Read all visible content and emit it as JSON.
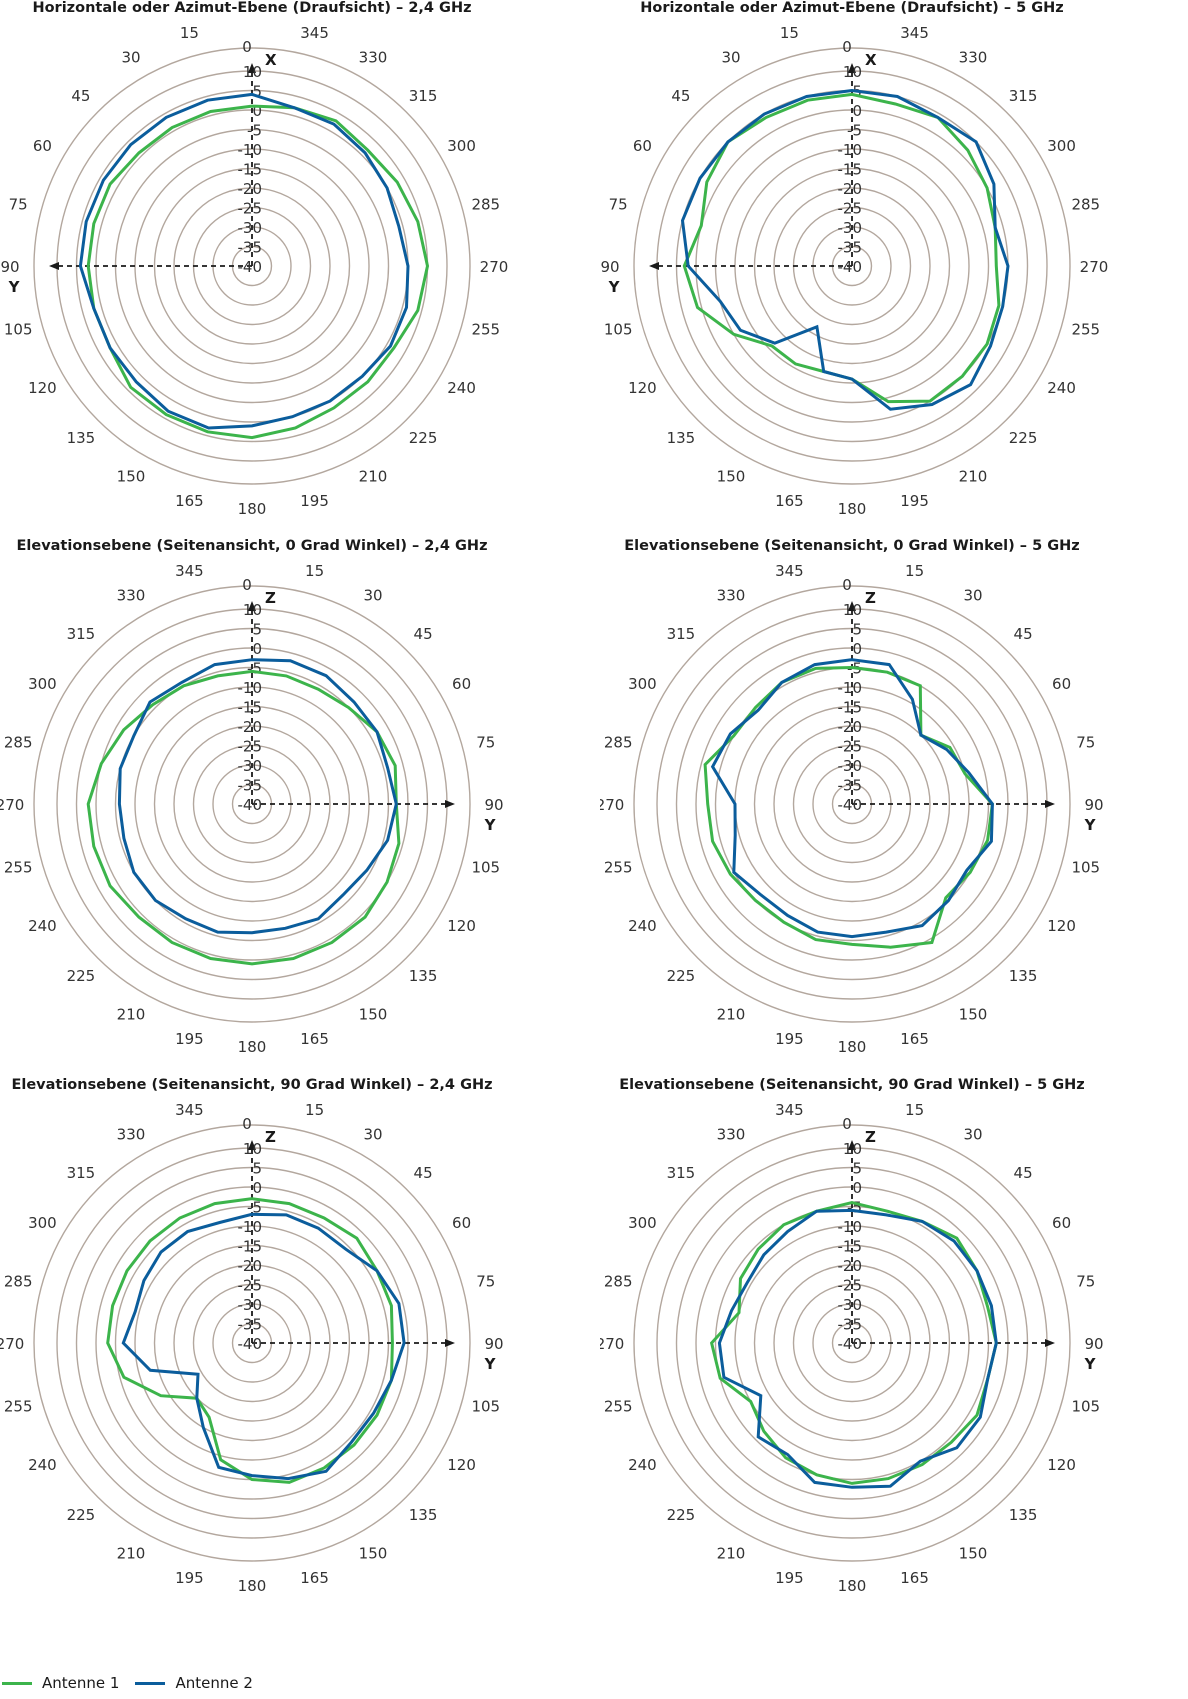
{
  "colors": {
    "antenne1": "#3cb44b",
    "antenne2": "#0b5d9c",
    "grid": "#b3a79e",
    "axis": "#1a1a1a"
  },
  "legend": [
    {
      "label": "Antenne 1",
      "color": "#3cb44b"
    },
    {
      "label": "Antenne 2",
      "color": "#0b5d9c"
    }
  ],
  "chart_data": [
    {
      "type": "polar",
      "title": "Horizontale oder Azimut-Ebene (Draufsicht) – 2,4 GHz",
      "angle_direction": "counterclockwise",
      "angle_labels": [
        "0",
        "15",
        "30",
        "45",
        "60",
        "75",
        "90",
        "105",
        "120",
        "135",
        "150",
        "165",
        "180",
        "195",
        "210",
        "225",
        "240",
        "255",
        "270",
        "285",
        "300",
        "315",
        "330",
        "345"
      ],
      "radial_ticks": [
        "10",
        "5",
        "0",
        "-5",
        "-10",
        "-15",
        "-20",
        "-25",
        "-30",
        "-35",
        "-40"
      ],
      "rlim": [
        -40,
        10
      ],
      "axis_labels": {
        "up": "X",
        "side": "Y"
      },
      "side_axis_angle": 90,
      "series": [
        {
          "name": "Antenne 1",
          "angles": [
            0,
            15,
            30,
            45,
            60,
            75,
            90,
            105,
            120,
            135,
            150,
            165,
            180,
            195,
            210,
            225,
            240,
            255,
            270,
            285,
            300,
            315,
            330,
            345
          ],
          "values": [
            1,
            1,
            1,
            1,
            2,
            2,
            2,
            2,
            2,
            4,
            4,
            4,
            4,
            3,
            2,
            2,
            2,
            4,
            5,
            4,
            3,
            2,
            3,
            2
          ]
        },
        {
          "name": "Antenne 2",
          "angles": [
            0,
            15,
            30,
            45,
            60,
            75,
            90,
            105,
            120,
            135,
            150,
            165,
            180,
            195,
            210,
            225,
            240,
            255,
            270,
            285,
            300,
            315,
            330,
            345
          ],
          "values": [
            4,
            4,
            4,
            4,
            4,
            4,
            4,
            2,
            2,
            2,
            3,
            3,
            1,
            0,
            0,
            0,
            1,
            1,
            0,
            -1,
            0,
            1,
            2,
            2
          ]
        }
      ]
    },
    {
      "type": "polar",
      "title": "Horizontale oder Azimut-Ebene (Draufsicht) – 5 GHz",
      "angle_direction": "counterclockwise",
      "angle_labels": [
        "0",
        "15",
        "30",
        "45",
        "60",
        "75",
        "90",
        "105",
        "120",
        "135",
        "150",
        "165",
        "180",
        "195",
        "210",
        "225",
        "240",
        "255",
        "270",
        "285",
        "300",
        "315",
        "330",
        "345"
      ],
      "radial_ticks": [
        "10",
        "5",
        "0",
        "-5",
        "-10",
        "-15",
        "-20",
        "-25",
        "-30",
        "-35",
        "-40"
      ],
      "rlim": [
        -40,
        10
      ],
      "axis_labels": {
        "up": "X",
        "side": "Y"
      },
      "side_axis_angle": 90,
      "series": [
        {
          "name": "Antenne 1",
          "angles": [
            0,
            15,
            30,
            45,
            60,
            75,
            90,
            105,
            120,
            135,
            150,
            165,
            180,
            195,
            210,
            225,
            240,
            255,
            270,
            285,
            300,
            315,
            330,
            345
          ],
          "values": [
            4,
            4,
            4,
            5,
            3,
            0,
            3,
            1,
            -5,
            -11,
            -11,
            -12,
            -11,
            -4,
            0,
            0,
            0,
            -1,
            -3,
            -2,
            0,
            2,
            4,
            3
          ]
        },
        {
          "name": "Antenne 2",
          "angles": [
            0,
            15,
            30,
            45,
            60,
            75,
            90,
            105,
            120,
            135,
            150,
            165,
            180,
            195,
            210,
            225,
            240,
            255,
            270,
            285,
            300,
            315,
            330,
            345
          ],
          "values": [
            5,
            5,
            5,
            5,
            5,
            5,
            2,
            -5,
            -7,
            -12,
            -22,
            -12,
            -11,
            -2,
            1,
            3,
            1,
            0,
            0,
            -2,
            2,
            5,
            4,
            5
          ]
        }
      ]
    },
    {
      "type": "polar",
      "title": "Elevationsebene (Seitenansicht, 0 Grad Winkel) – 2,4 GHz",
      "angle_direction": "clockwise",
      "angle_labels": [
        "0",
        "15",
        "30",
        "45",
        "60",
        "75",
        "90",
        "105",
        "120",
        "135",
        "150",
        "165",
        "180",
        "195",
        "210",
        "225",
        "240",
        "255",
        "270",
        "285",
        "300",
        "315",
        "330",
        "345"
      ],
      "radial_ticks": [
        "10",
        "5",
        "0",
        "-5",
        "-10",
        "-15",
        "-20",
        "-25",
        "-30",
        "-35",
        "-40"
      ],
      "rlim": [
        -40,
        10
      ],
      "axis_labels": {
        "up": "Z",
        "side": "Y"
      },
      "side_axis_angle": 90,
      "series": [
        {
          "name": "Antenne 1",
          "angles": [
            0,
            15,
            30,
            45,
            60,
            75,
            90,
            105,
            120,
            135,
            150,
            165,
            180,
            195,
            210,
            225,
            240,
            255,
            270,
            285,
            300,
            315,
            330,
            345
          ],
          "values": [
            -6,
            -6,
            -6,
            -5,
            -3,
            -2,
            -3,
            -1,
            0,
            1,
            1,
            1,
            1,
            1,
            1,
            1,
            2,
            2,
            2,
            0,
            -2,
            -4,
            -5,
            -6
          ]
        },
        {
          "name": "Antenne 2",
          "angles": [
            0,
            15,
            30,
            45,
            60,
            75,
            90,
            105,
            120,
            135,
            150,
            165,
            180,
            195,
            210,
            225,
            240,
            255,
            270,
            285,
            300,
            315,
            330,
            345
          ],
          "values": [
            -3,
            -2,
            -2,
            -3,
            -3,
            -4,
            -3,
            -4,
            -6,
            -7,
            -6,
            -7,
            -7,
            -6,
            -6,
            -5,
            -5,
            -6,
            -6,
            -5,
            -5,
            -3,
            -4,
            -3
          ]
        }
      ]
    },
    {
      "type": "polar",
      "title": "Elevationsebene (Seitenansicht, 0 Grad Winkel) – 5 GHz",
      "angle_direction": "clockwise",
      "angle_labels": [
        "0",
        "15",
        "30",
        "45",
        "60",
        "75",
        "90",
        "105",
        "120",
        "135",
        "150",
        "165",
        "180",
        "195",
        "210",
        "225",
        "240",
        "255",
        "270",
        "285",
        "300",
        "315",
        "330",
        "345"
      ],
      "radial_ticks": [
        "10",
        "5",
        "0",
        "-5",
        "-10",
        "-15",
        "-20",
        "-25",
        "-30",
        "-35",
        "-40"
      ],
      "rlim": [
        -40,
        10
      ],
      "axis_labels": {
        "up": "Z",
        "side": "Y"
      },
      "side_axis_angle": 90,
      "series": [
        {
          "name": "Antenne 1",
          "angles": [
            0,
            15,
            30,
            45,
            60,
            75,
            90,
            105,
            120,
            135,
            150,
            165,
            180,
            195,
            210,
            225,
            240,
            255,
            270,
            285,
            300,
            315,
            330,
            345
          ],
          "values": [
            -5,
            -5,
            -5,
            -15,
            -11,
            -10,
            -4,
            -4,
            -5,
            -6,
            1,
            -2,
            -4,
            -4,
            -5,
            -5,
            -4,
            -3,
            -3,
            -1,
            -5,
            -5,
            -4,
            -4
          ]
        },
        {
          "name": "Antenne 2",
          "angles": [
            0,
            15,
            30,
            45,
            60,
            75,
            90,
            105,
            120,
            135,
            150,
            165,
            180,
            195,
            210,
            225,
            240,
            255,
            270,
            285,
            300,
            315,
            330,
            345
          ],
          "values": [
            -3,
            -3,
            -9,
            -15,
            -12,
            -9,
            -4,
            -3,
            -6,
            -5,
            -4,
            -6,
            -6,
            -6,
            -7,
            -7,
            -5,
            -9,
            -10,
            -3,
            -4,
            -6,
            -4,
            -3
          ]
        }
      ]
    },
    {
      "type": "polar",
      "title": "Elevationsebene (Seitenansicht, 90 Grad Winkel) – 2,4 GHz",
      "angle_direction": "clockwise",
      "angle_labels": [
        "0",
        "15",
        "30",
        "45",
        "60",
        "75",
        "90",
        "105",
        "120",
        "135",
        "150",
        "165",
        "180",
        "195",
        "210",
        "225",
        "240",
        "255",
        "270",
        "285",
        "300",
        "315",
        "330",
        "345"
      ],
      "radial_ticks": [
        "10",
        "5",
        "0",
        "-5",
        "-10",
        "-15",
        "-20",
        "-25",
        "-30",
        "-35",
        "-40"
      ],
      "rlim": [
        -40,
        10
      ],
      "axis_labels": {
        "up": "Z",
        "side": "Y"
      },
      "side_axis_angle": 90,
      "series": [
        {
          "name": "Antenne 1",
          "angles": [
            0,
            15,
            30,
            45,
            60,
            75,
            90,
            105,
            120,
            135,
            150,
            165,
            180,
            195,
            210,
            225,
            240,
            255,
            270,
            285,
            300,
            315,
            330,
            345
          ],
          "values": [
            -3,
            -3,
            -3,
            -2,
            -3,
            -3,
            -4,
            -3,
            -3,
            -3,
            -3,
            -3,
            -5,
            -9,
            -18,
            -20,
            -13,
            -6,
            -3,
            -3,
            -3,
            -3,
            -3,
            -3
          ]
        },
        {
          "name": "Antenne 2",
          "angles": [
            0,
            15,
            30,
            45,
            60,
            75,
            90,
            105,
            120,
            135,
            150,
            165,
            180,
            195,
            210,
            225,
            240,
            255,
            270,
            285,
            300,
            315,
            330,
            345
          ],
          "values": [
            -7,
            -6,
            -6,
            -6,
            -3,
            -1,
            -1,
            -3,
            -4,
            -4,
            -2,
            -4,
            -6,
            -7,
            -15,
            -20,
            -24,
            -13,
            -7,
            -9,
            -8,
            -7,
            -7,
            -8
          ]
        }
      ]
    },
    {
      "type": "polar",
      "title": "Elevationsebene (Seitenansicht, 90 Grad Winkel) – 5 GHz",
      "angle_direction": "clockwise",
      "angle_labels": [
        "0",
        "15",
        "30",
        "45",
        "60",
        "75",
        "90",
        "105",
        "120",
        "135",
        "150",
        "165",
        "180",
        "195",
        "210",
        "225",
        "240",
        "255",
        "270",
        "285",
        "300",
        "315",
        "330",
        "345"
      ],
      "radial_ticks": [
        "10",
        "5",
        "0",
        "-5",
        "-10",
        "-15",
        "-20",
        "-25",
        "-30",
        "-35",
        "-40"
      ],
      "rlim": [
        -40,
        10
      ],
      "axis_labels": {
        "up": "Z",
        "side": "Y"
      },
      "side_axis_angle": 90,
      "series": [
        {
          "name": "Antenne 1",
          "angles": [
            0,
            15,
            30,
            45,
            60,
            75,
            90,
            105,
            120,
            135,
            150,
            165,
            180,
            195,
            210,
            225,
            240,
            255,
            270,
            285,
            300,
            315,
            330,
            345
          ],
          "values": [
            -4,
            -5,
            -4,
            -2,
            -3,
            -4,
            -3,
            -4,
            -3,
            -4,
            -4,
            -4,
            -4,
            -5,
            -6,
            -8,
            -10,
            -5,
            -4,
            -10,
            -7,
            -6,
            -5,
            -5
          ]
        },
        {
          "name": "Antenne 2",
          "angles": [
            0,
            15,
            30,
            45,
            60,
            75,
            90,
            105,
            120,
            135,
            150,
            165,
            180,
            195,
            210,
            225,
            240,
            255,
            270,
            285,
            300,
            315,
            330,
            345
          ],
          "values": [
            -6,
            -6,
            -4,
            -3,
            -3,
            -3,
            -3,
            -4,
            -2,
            -2,
            -5,
            -2,
            -3,
            -3,
            -7,
            -6,
            -13,
            -6,
            -6,
            -8,
            -9,
            -8,
            -7,
            -5
          ]
        }
      ]
    }
  ]
}
